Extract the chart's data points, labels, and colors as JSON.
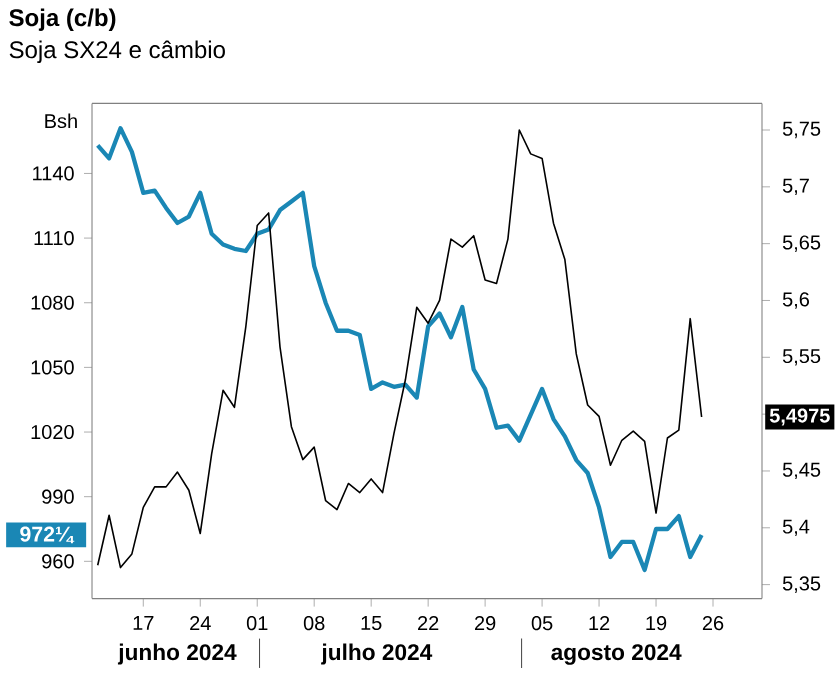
{
  "chart_data": {
    "type": "line",
    "title": "Soja (c/b)",
    "subtitle": "Soja SX24 e câmbio",
    "ylabel": "Bsh",
    "categories": [
      null,
      null,
      null,
      null,
      "17",
      null,
      null,
      null,
      null,
      "24",
      null,
      null,
      null,
      null,
      "01",
      null,
      null,
      null,
      null,
      "08",
      null,
      null,
      null,
      null,
      "15",
      null,
      null,
      null,
      null,
      "22",
      null,
      null,
      null,
      null,
      "29",
      null,
      null,
      null,
      null,
      "05",
      null,
      null,
      null,
      null,
      "12",
      null,
      null,
      null,
      null,
      "19",
      null,
      null,
      null,
      null,
      "26",
      null,
      null,
      null,
      null
    ],
    "series": [
      {
        "color": "#1a87b5",
        "values": [
          1153,
          1147,
          1161,
          1150,
          1131,
          1132,
          1124,
          1117,
          1120,
          1131,
          1112,
          1107,
          1105,
          1104,
          1112,
          1114,
          1123,
          1127,
          1131,
          1097,
          1080,
          1067,
          1067,
          1065,
          1040,
          1043,
          1041,
          1042,
          1036,
          1069,
          1075,
          1064,
          1078,
          1049,
          1040,
          1022,
          1023,
          1016,
          1028,
          1040,
          1026,
          1018,
          1007,
          1001,
          985,
          962,
          969,
          969,
          956,
          975,
          975,
          981,
          962,
          972.25,
          null,
          null,
          null,
          null,
          null
        ]
      },
      {
        "color": "#000000",
        "axis": "y2",
        "values": [
          5.367,
          5.411,
          5.365,
          5.377,
          5.418,
          5.436,
          5.436,
          5.449,
          5.433,
          5.395,
          5.465,
          5.521,
          5.506,
          5.577,
          5.666,
          5.677,
          5.559,
          5.489,
          5.46,
          5.471,
          5.424,
          5.416,
          5.439,
          5.431,
          5.443,
          5.431,
          5.483,
          5.53,
          5.594,
          5.58,
          5.6,
          5.654,
          5.647,
          5.657,
          5.618,
          5.615,
          5.654,
          5.75,
          5.729,
          5.725,
          5.668,
          5.636,
          5.553,
          5.508,
          5.498,
          5.455,
          5.477,
          5.485,
          5.476,
          5.413,
          5.479,
          5.486,
          5.584,
          5.4975,
          null,
          null,
          null,
          null,
          null
        ]
      }
    ],
    "ylim": [
      942.7,
      1172.5
    ],
    "yticks": [
      960,
      990,
      1020,
      1050,
      1080,
      1110,
      1140
    ],
    "y2lim": [
      5.3377,
      5.7734
    ],
    "y2ticks": [
      {
        "value": 5.35,
        "label": "5,35"
      },
      {
        "value": 5.4,
        "label": "5,4"
      },
      {
        "value": 5.45,
        "label": "5,45"
      },
      {
        "value": 5.5,
        "label": null
      },
      {
        "value": 5.55,
        "label": "5,55"
      },
      {
        "value": 5.6,
        "label": "5,6"
      },
      {
        "value": 5.65,
        "label": "5,65"
      },
      {
        "value": 5.7,
        "label": "5,7"
      },
      {
        "value": 5.75,
        "label": "5,75"
      }
    ],
    "annotations": [
      "972¼",
      "5,4975",
      "junho 2024",
      "julho 2024",
      "agosto 2024"
    ],
    "grid": false,
    "marker": "none",
    "line_style": "solid"
  }
}
